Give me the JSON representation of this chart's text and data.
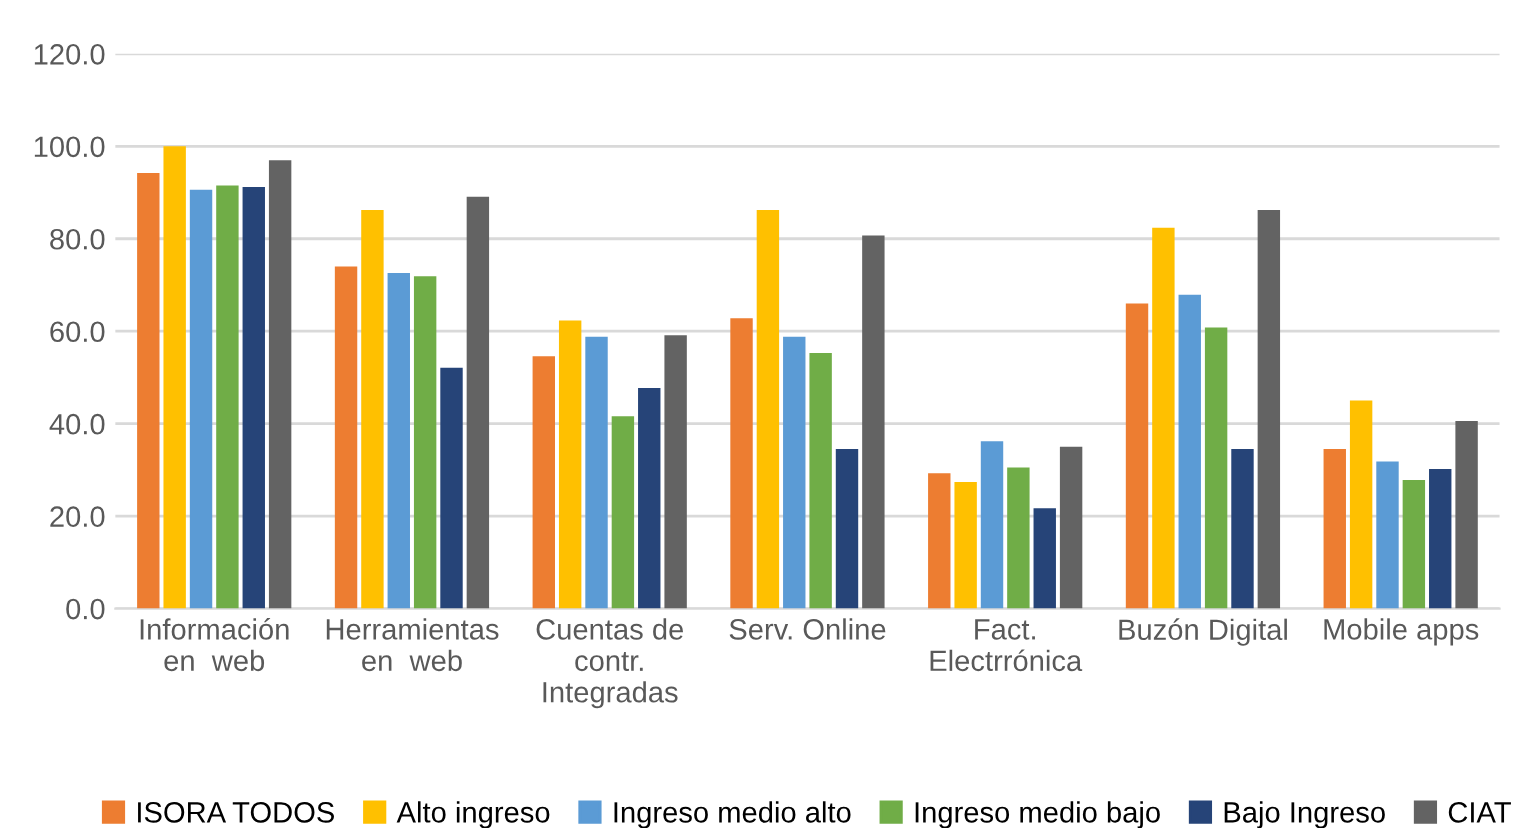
{
  "chart_data": {
    "type": "bar",
    "categories": [
      "Información\nen  web",
      "Herramientas\nen  web",
      "Cuentas de\ncontr.\nIntegradas",
      "Serv. Online",
      "Fact.\nElectrrónica",
      "Buzón Digital",
      "Mobile apps"
    ],
    "series": [
      {
        "name": "ISORA TODOS",
        "color": "#ed7d31",
        "values": [
          94.2,
          74.0,
          54.6,
          62.8,
          29.3,
          66.0,
          34.5
        ]
      },
      {
        "name": "Alto ingreso",
        "color": "#ffc000",
        "values": [
          100.0,
          86.2,
          62.3,
          86.2,
          27.4,
          82.4,
          45.0
        ]
      },
      {
        "name": "Ingreso medio alto",
        "color": "#5b9bd5",
        "values": [
          90.6,
          72.6,
          58.8,
          58.8,
          36.2,
          67.9,
          31.8
        ]
      },
      {
        "name": "Ingreso medio bajo",
        "color": "#70ad47",
        "values": [
          91.5,
          71.9,
          41.6,
          55.3,
          30.5,
          60.8,
          27.8
        ]
      },
      {
        "name": "Bajo Ingreso",
        "color": "#264478",
        "values": [
          91.2,
          52.1,
          47.7,
          34.5,
          21.7,
          34.5,
          30.2
        ]
      },
      {
        "name": "CIAT",
        "color": "#636363",
        "values": [
          97.0,
          89.1,
          59.1,
          80.7,
          35.0,
          86.2,
          40.6
        ]
      }
    ],
    "ylim": [
      0,
      120
    ],
    "yticks": [
      {
        "value": 0,
        "label": "0.0"
      },
      {
        "value": 20,
        "label": "20.0"
      },
      {
        "value": 40,
        "label": "40.0"
      },
      {
        "value": 60,
        "label": "60.0"
      },
      {
        "value": 80,
        "label": "80.0"
      },
      {
        "value": 100,
        "label": "100.0"
      },
      {
        "value": 120,
        "label": "120.0"
      }
    ],
    "grid": "y",
    "legend": "bottom"
  }
}
